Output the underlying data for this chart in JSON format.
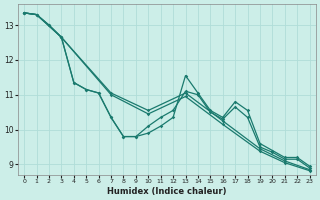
{
  "xlabel": "Humidex (Indice chaleur)",
  "background_color": "#cceee8",
  "grid_color": "#b0ddd8",
  "line_color": "#1a7a6e",
  "xlim": [
    -0.5,
    23.5
  ],
  "ylim": [
    8.7,
    13.6
  ],
  "yticks": [
    9,
    10,
    11,
    12,
    13
  ],
  "xticks": [
    0,
    1,
    2,
    3,
    4,
    5,
    6,
    7,
    8,
    9,
    10,
    11,
    12,
    13,
    14,
    15,
    16,
    17,
    18,
    19,
    20,
    21,
    22,
    23
  ],
  "series1": [
    [
      0,
      13.35
    ],
    [
      1,
      13.3
    ],
    [
      2,
      13.0
    ],
    [
      3,
      12.65
    ],
    [
      4,
      11.35
    ],
    [
      5,
      11.15
    ],
    [
      6,
      11.05
    ],
    [
      7,
      10.35
    ],
    [
      8,
      9.8
    ],
    [
      9,
      9.8
    ],
    [
      10,
      9.9
    ],
    [
      11,
      10.1
    ],
    [
      12,
      10.35
    ],
    [
      13,
      11.55
    ],
    [
      14,
      11.05
    ],
    [
      15,
      10.55
    ],
    [
      16,
      10.35
    ],
    [
      17,
      10.8
    ],
    [
      18,
      10.55
    ],
    [
      19,
      9.6
    ],
    [
      20,
      9.4
    ],
    [
      21,
      9.2
    ],
    [
      22,
      9.2
    ],
    [
      23,
      8.95
    ]
  ],
  "series2": [
    [
      0,
      13.35
    ],
    [
      1,
      13.3
    ],
    [
      2,
      13.0
    ],
    [
      3,
      12.65
    ],
    [
      4,
      11.35
    ],
    [
      5,
      11.15
    ],
    [
      6,
      11.05
    ],
    [
      7,
      10.35
    ],
    [
      8,
      9.8
    ],
    [
      9,
      9.8
    ],
    [
      10,
      10.1
    ],
    [
      11,
      10.35
    ],
    [
      12,
      10.55
    ],
    [
      13,
      11.1
    ],
    [
      14,
      11.0
    ],
    [
      15,
      10.5
    ],
    [
      16,
      10.3
    ],
    [
      17,
      10.65
    ],
    [
      18,
      10.35
    ],
    [
      19,
      9.5
    ],
    [
      20,
      9.35
    ],
    [
      21,
      9.15
    ],
    [
      22,
      9.15
    ],
    [
      23,
      8.9
    ]
  ],
  "series3": [
    [
      0,
      13.35
    ],
    [
      1,
      13.3
    ],
    [
      3,
      12.65
    ],
    [
      7,
      11.05
    ],
    [
      10,
      10.55
    ],
    [
      13,
      11.05
    ],
    [
      16,
      10.25
    ],
    [
      19,
      9.45
    ],
    [
      21,
      9.1
    ],
    [
      23,
      8.85
    ]
  ],
  "series4": [
    [
      0,
      13.35
    ],
    [
      1,
      13.3
    ],
    [
      3,
      12.65
    ],
    [
      7,
      11.0
    ],
    [
      10,
      10.45
    ],
    [
      13,
      10.95
    ],
    [
      16,
      10.15
    ],
    [
      19,
      9.38
    ],
    [
      21,
      9.05
    ],
    [
      23,
      8.82
    ]
  ]
}
